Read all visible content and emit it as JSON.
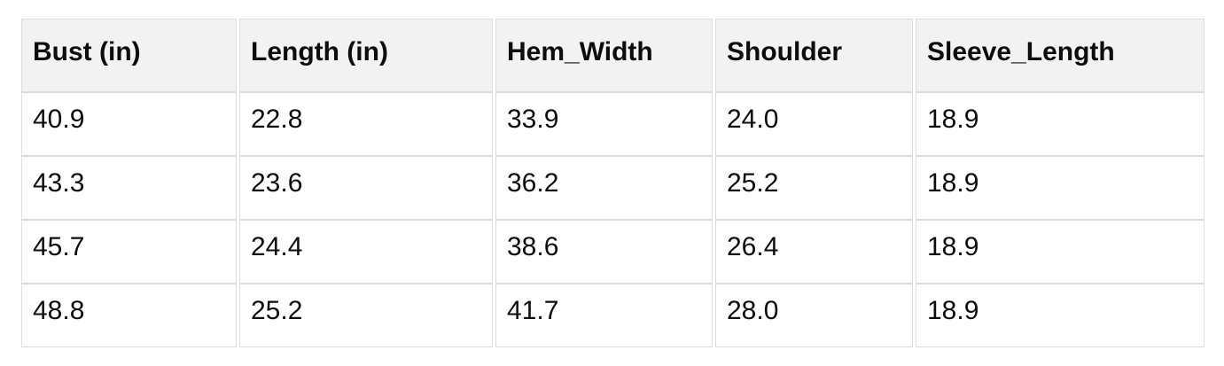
{
  "page": {
    "background": "#ffffff"
  },
  "table": {
    "header_bg": "#f2f2f2",
    "body_bg": "#ffffff",
    "border_color": "#dddddd",
    "text_color": "#0d0d0d",
    "columns": [
      "Bust (in)",
      "Length (in)",
      "Hem_Width",
      "Shoulder",
      "Sleeve_Length"
    ],
    "rows": [
      [
        "40.9",
        "22.8",
        "33.9",
        "24.0",
        "18.9"
      ],
      [
        "43.3",
        "23.6",
        "36.2",
        "25.2",
        "18.9"
      ],
      [
        "45.7",
        "24.4",
        "38.6",
        "26.4",
        "18.9"
      ],
      [
        "48.8",
        "25.2",
        "41.7",
        "28.0",
        "18.9"
      ]
    ]
  },
  "chart_data": {
    "type": "table",
    "title": "",
    "columns": [
      "Bust (in)",
      "Length (in)",
      "Hem_Width",
      "Shoulder",
      "Sleeve_Length"
    ],
    "rows": [
      [
        40.9,
        22.8,
        33.9,
        24.0,
        18.9
      ],
      [
        43.3,
        23.6,
        36.2,
        25.2,
        18.9
      ],
      [
        45.7,
        24.4,
        38.6,
        26.4,
        18.9
      ],
      [
        48.8,
        25.2,
        41.7,
        28.0,
        18.9
      ]
    ],
    "layout": {
      "header_background": "#f2f2f2",
      "grid": true,
      "header_bold": true
    }
  }
}
